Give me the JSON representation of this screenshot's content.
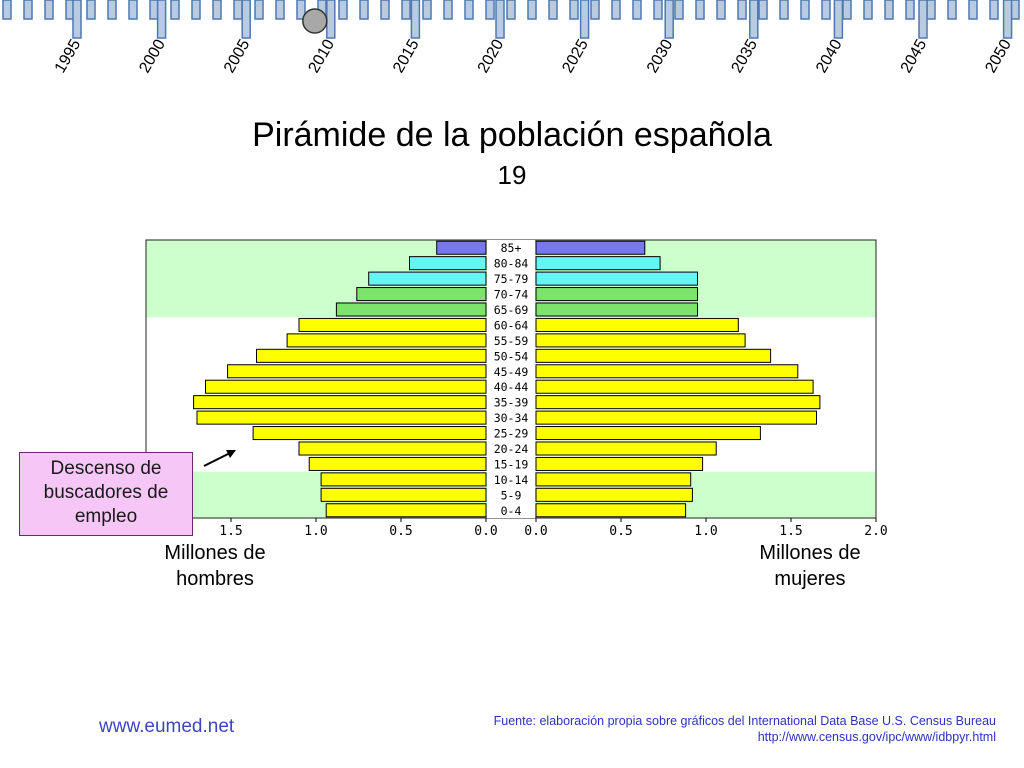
{
  "title": "Pirámide de la población española",
  "subtitle": "19",
  "timeline": {
    "years": [
      "1995",
      "2000",
      "2005",
      "2010",
      "2015",
      "2020",
      "2025",
      "2030",
      "2035",
      "2040",
      "2045",
      "2050"
    ],
    "selected": "2010",
    "colors": {
      "tick": "#b8cbe0",
      "tick_border": "#4f78b0",
      "slider": "#a8a8a8"
    }
  },
  "chart_data": {
    "type": "bar",
    "subtype": "population-pyramid",
    "categories": [
      "0-4",
      "5-9",
      "10-14",
      "15-19",
      "20-24",
      "25-29",
      "30-34",
      "35-39",
      "40-44",
      "45-49",
      "50-54",
      "55-59",
      "60-64",
      "65-69",
      "70-74",
      "75-79",
      "80-84",
      "85+"
    ],
    "series": [
      {
        "name": "Millones de hombres",
        "values": [
          0.94,
          0.97,
          0.97,
          1.04,
          1.1,
          1.37,
          1.7,
          1.72,
          1.65,
          1.52,
          1.35,
          1.17,
          1.1,
          0.88,
          0.76,
          0.69,
          0.45,
          0.29
        ]
      },
      {
        "name": "Millones de mujeres",
        "values": [
          0.88,
          0.92,
          0.91,
          0.98,
          1.06,
          1.32,
          1.65,
          1.67,
          1.63,
          1.54,
          1.38,
          1.23,
          1.19,
          0.95,
          0.95,
          0.95,
          0.73,
          0.64
        ]
      }
    ],
    "left_ticks": [
      "1.5",
      "1.0",
      "0.5",
      "0.0"
    ],
    "right_ticks": [
      "0.0",
      "0.5",
      "1.0",
      "1.5",
      "2.0"
    ],
    "xlim": [
      0,
      2.0
    ],
    "colors": {
      "0-64": "#ffff00",
      "65-74": "#7ce36c",
      "75-84": "#66f5f5",
      "85+": "#7878ee",
      "band_green": "#ccffcc"
    }
  },
  "labels": {
    "men": "Millones de hombres",
    "women": "Millones de mujeres",
    "callout": "Descenso de buscadores de empleo"
  },
  "footer": {
    "site": "www.eumed.net",
    "source_line1": "Fuente: elaboración propia sobre gráficos del International Data Base U.S. Census Bureau",
    "source_line2": "http://www.census.gov/ipc/www/idbpyr.html"
  }
}
